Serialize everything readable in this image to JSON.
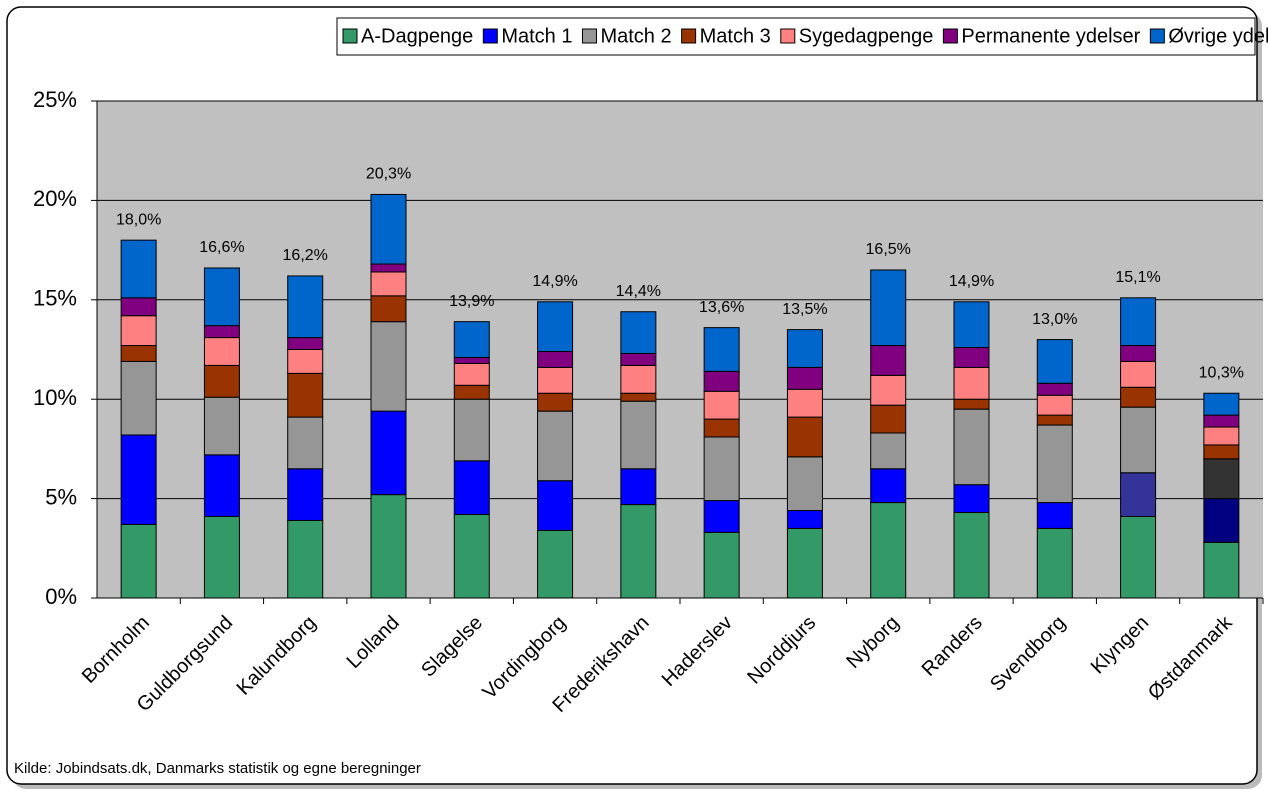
{
  "chart_data": {
    "type": "stacked_bar",
    "categories": [
      "Bornholm",
      "Guldborgsund",
      "Kalundborg",
      "Lolland",
      "Slagelse",
      "Vordingborg",
      "Frederikshavn",
      "Haderslev",
      "Norddjurs",
      "Nyborg",
      "Randers",
      "Svendborg",
      "Klyngen",
      "Østdanmark"
    ],
    "series": [
      {
        "name": "A-Dagpenge",
        "color": "#339966",
        "values": [
          3.7,
          4.1,
          3.9,
          5.2,
          4.2,
          3.4,
          4.7,
          3.3,
          3.5,
          4.8,
          4.3,
          3.5,
          4.1,
          2.8
        ]
      },
      {
        "name": "Match 1",
        "color": "#0000ff",
        "values": [
          4.5,
          3.1,
          2.6,
          4.2,
          2.7,
          2.5,
          1.8,
          1.6,
          0.9,
          1.7,
          1.4,
          1.3,
          2.2,
          2.2
        ],
        "colors": [
          "#0000ff",
          "#0000ff",
          "#0000ff",
          "#0000ff",
          "#0000ff",
          "#0000ff",
          "#0000ff",
          "#0000ff",
          "#0000ff",
          "#0000ff",
          "#0000ff",
          "#0000ff",
          "#333399",
          "#000080"
        ]
      },
      {
        "name": "Match 2",
        "color": "#969696",
        "values": [
          3.7,
          2.9,
          2.6,
          4.5,
          3.1,
          3.5,
          3.4,
          3.2,
          2.7,
          1.8,
          3.8,
          3.9,
          3.3,
          2.0
        ],
        "colors": [
          "#969696",
          "#969696",
          "#969696",
          "#969696",
          "#969696",
          "#969696",
          "#969696",
          "#969696",
          "#969696",
          "#969696",
          "#969696",
          "#969696",
          "#969696",
          "#333333"
        ]
      },
      {
        "name": "Match 3",
        "color": "#993300",
        "values": [
          0.8,
          1.6,
          2.2,
          1.3,
          0.7,
          0.9,
          0.4,
          0.9,
          2.0,
          1.4,
          0.5,
          0.5,
          1.0,
          0.7
        ]
      },
      {
        "name": "Sygedagpenge",
        "color": "#ff8080",
        "values": [
          1.5,
          1.4,
          1.2,
          1.2,
          1.1,
          1.3,
          1.4,
          1.4,
          1.4,
          1.5,
          1.6,
          1.0,
          1.3,
          0.9
        ]
      },
      {
        "name": "Permanente ydelser",
        "color": "#800080",
        "values": [
          0.9,
          0.6,
          0.6,
          0.4,
          0.3,
          0.8,
          0.6,
          1.0,
          1.1,
          1.5,
          1.0,
          0.6,
          0.8,
          0.6
        ]
      },
      {
        "name": "Øvrige ydelser",
        "color": "#0066cc",
        "values": [
          2.9,
          2.9,
          3.1,
          3.5,
          1.8,
          2.5,
          2.1,
          2.2,
          1.9,
          3.8,
          2.3,
          2.2,
          2.4,
          1.1
        ]
      }
    ],
    "totals": [
      18.0,
      16.6,
      16.2,
      20.3,
      13.9,
      14.9,
      14.4,
      13.6,
      13.5,
      16.5,
      14.9,
      13.0,
      15.1,
      10.3
    ],
    "total_labels": [
      "18,0%",
      "16,6%",
      "16,2%",
      "20,3%",
      "13,9%",
      "14,9%",
      "14,4%",
      "13,6%",
      "13,5%",
      "16,5%",
      "14,9%",
      "13,0%",
      "15,1%",
      "10,3%"
    ],
    "ylim": [
      0,
      25
    ],
    "yticks": [
      {
        "value": 0,
        "label": "0%"
      },
      {
        "value": 5,
        "label": "5%"
      },
      {
        "value": 10,
        "label": "10%"
      },
      {
        "value": 15,
        "label": "15%"
      },
      {
        "value": 20,
        "label": "20%"
      },
      {
        "value": 25,
        "label": "25%"
      }
    ],
    "grid": true,
    "legend": "top",
    "plot_background": "#c0c0c0",
    "source": "Kilde: Jobindsats.dk, Danmarks statistik og egne beregninger"
  }
}
